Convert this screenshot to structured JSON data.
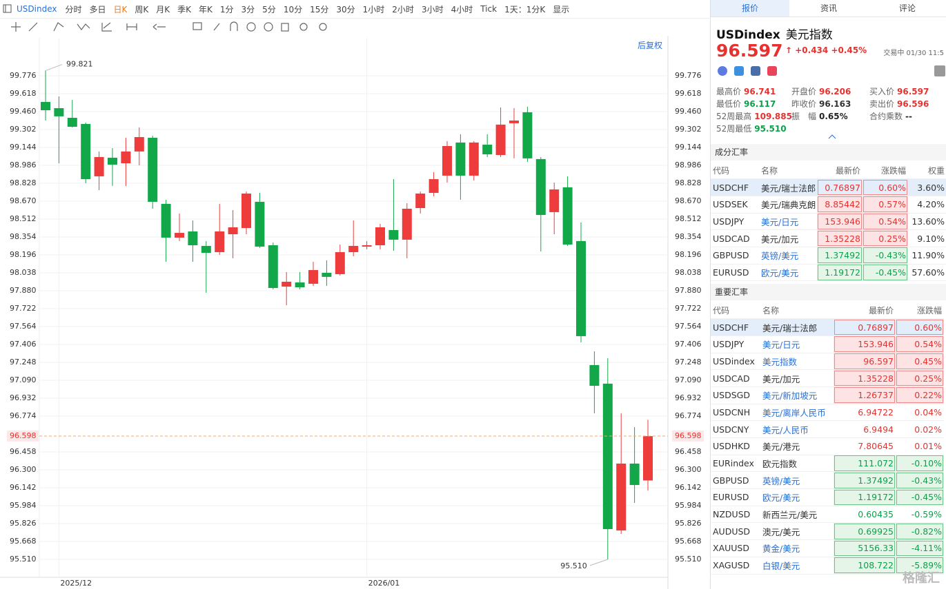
{
  "toolbar": {
    "symbol": "USDindex",
    "periods": [
      "分时",
      "多日",
      "日K",
      "周K",
      "月K",
      "季K",
      "年K",
      "1分",
      "3分",
      "5分",
      "10分",
      "15分",
      "30分",
      "1小时",
      "2小时",
      "3小时",
      "4小时",
      "Tick",
      "1天：1分K",
      "显示"
    ],
    "active_period": 2,
    "adjust": "后复权"
  },
  "chart_data": {
    "type": "candlestick",
    "categories": [
      null,
      "2025/12",
      null,
      null,
      null,
      null,
      null,
      null,
      null,
      null,
      null,
      null,
      null,
      null,
      null,
      null,
      null,
      null,
      null,
      null,
      null,
      null,
      null,
      null,
      "2026/01",
      null,
      null,
      null,
      null,
      null,
      null,
      null,
      null,
      null,
      null,
      null,
      null,
      null,
      null,
      null,
      null,
      null,
      null,
      null,
      null,
      null
    ],
    "open": [
      99.545,
      99.49,
      99.405,
      99.351,
      98.889,
      99.053,
      99.004,
      99.108,
      99.229,
      98.646,
      98.348,
      98.403,
      98.275,
      98.22,
      98.378,
      98.433,
      98.664,
      98.281,
      97.916,
      97.953,
      97.941,
      98.038,
      98.026,
      98.22,
      98.269,
      98.281,
      98.415,
      98.33,
      98.609,
      98.743,
      98.895,
      99.187,
      98.895,
      99.168,
      99.077,
      99.357,
      99.454,
      99.041,
      98.573,
      98.792,
      98.318,
      97.224,
      97.06,
      95.765,
      96.355,
      96.206
    ],
    "close": [
      99.472,
      99.418,
      99.326,
      98.864,
      99.059,
      98.992,
      99.108,
      99.235,
      98.664,
      98.348,
      98.39,
      98.281,
      98.214,
      98.403,
      98.439,
      98.737,
      98.269,
      97.904,
      97.959,
      97.91,
      98.062,
      98.002,
      98.22,
      98.275,
      98.281,
      98.439,
      98.33,
      98.603,
      98.737,
      98.864,
      99.156,
      98.895,
      99.187,
      99.083,
      99.345,
      99.381,
      99.047,
      98.548,
      98.773,
      98.287,
      97.479,
      97.041,
      95.777,
      96.355,
      96.166,
      96.597
    ],
    "high": [
      99.821,
      99.594,
      99.563,
      99.363,
      99.108,
      99.138,
      99.229,
      99.32,
      99.247,
      98.682,
      98.561,
      98.5,
      98.318,
      98.646,
      98.591,
      98.755,
      98.743,
      98.305,
      98.044,
      98.044,
      98.135,
      98.147,
      98.287,
      98.5,
      98.318,
      98.469,
      98.864,
      98.652,
      98.755,
      98.925,
      99.199,
      99.26,
      99.199,
      99.26,
      99.497,
      99.49,
      99.503,
      99.059,
      98.834,
      98.889,
      98.482,
      97.345,
      97.284,
      96.798,
      96.677,
      96.741
    ],
    "low": [
      99.381,
      99.004,
      99.32,
      98.828,
      98.767,
      98.804,
      98.804,
      98.986,
      98.603,
      98.135,
      98.318,
      98.135,
      97.862,
      98.196,
      98.166,
      98.378,
      98.257,
      97.892,
      97.752,
      97.892,
      97.922,
      97.922,
      98.014,
      98.184,
      98.245,
      98.245,
      98.232,
      98.166,
      98.561,
      98.713,
      98.834,
      98.682,
      98.852,
      99.059,
      99.059,
      99.047,
      99.016,
      98.226,
      98.378,
      98.275,
      97.424,
      96.798,
      95.51,
      95.735,
      96.008,
      96.117
    ],
    "up_color": "#ee3b3b",
    "down_color": "#12a84a",
    "ylim": [
      95.352,
      100.11
    ],
    "yticks": [
      99.776,
      99.618,
      {
        "value": 99.46,
        "label": "99.460"
      },
      99.302,
      99.144,
      98.986,
      98.828,
      {
        "value": 98.67,
        "label": "98.670"
      },
      98.512,
      98.354,
      98.196,
      98.038,
      {
        "value": 97.88,
        "label": "97.880"
      },
      97.722,
      97.564,
      97.406,
      97.248,
      {
        "value": 97.09,
        "label": "97.090"
      },
      96.932,
      96.774,
      96.458,
      {
        "value": 96.3,
        "label": "96.300"
      },
      96.142,
      95.984,
      95.826,
      95.668,
      {
        "value": 95.51,
        "label": "95.510"
      }
    ],
    "grid": true,
    "current_price": 96.598,
    "max_label": 99.821,
    "min_label": {
      "value": 95.51,
      "label": "95.510"
    }
  },
  "panel": {
    "tabs": [
      "报价",
      "资讯",
      "评论"
    ],
    "code": "USDindex",
    "name": "美元指数",
    "price": "96.597",
    "change": "+0.434",
    "change_pct": "+0.45%",
    "status": "交易中 01/30 11:5",
    "stats": [
      {
        "label": "最高价",
        "value": "96.741",
        "color": "#e8312f"
      },
      {
        "label": "开盘价",
        "value": "96.206",
        "color": "#e8312f"
      },
      {
        "label": "买入价",
        "value": "96.597",
        "color": "#e8312f"
      },
      {
        "label": "最低价",
        "value": "96.117",
        "color": "#0aa14a"
      },
      {
        "label": "昨收价",
        "value": "96.163",
        "color": "#333333"
      },
      {
        "label": "卖出价",
        "value": "96.596",
        "color": "#e8312f"
      },
      {
        "label": "52周最高",
        "value": "109.885",
        "color": "#e8312f"
      },
      {
        "label": "振　幅",
        "value": "0.65%",
        "color": "#222222"
      },
      {
        "label": "合约乘数",
        "value": "--",
        "color": "#222222"
      },
      {
        "label": "52周最低",
        "value": "95.510",
        "color": "#0aa14a"
      }
    ],
    "components": {
      "title": "成分汇率",
      "headers": [
        "代码",
        "名称",
        "最新价",
        "涨跌幅",
        "权重"
      ],
      "rows": [
        {
          "code": "USDCHF",
          "name": "美元/瑞士法郎",
          "price": "0.76897",
          "change": "0.60%",
          "weight": "3.60%",
          "link": false,
          "boxed": true
        },
        {
          "code": "USDSEK",
          "name": "美元/瑞典克朗",
          "price": "8.85442",
          "change": "0.57%",
          "weight": "4.20%",
          "link": false,
          "boxed": true
        },
        {
          "code": "USDJPY",
          "name": "美元/日元",
          "price": "153.946",
          "change": "0.54%",
          "weight": "13.60%",
          "link": true,
          "boxed": true
        },
        {
          "code": "USDCAD",
          "name": "美元/加元",
          "price": "1.35228",
          "change": "0.25%",
          "weight": "9.10%",
          "link": false,
          "boxed": true
        },
        {
          "code": "GBPUSD",
          "name": "英镑/美元",
          "price": "1.37492",
          "change": "-0.43%",
          "weight": "11.90%",
          "link": true,
          "boxed": true
        },
        {
          "code": "EURUSD",
          "name": "欧元/美元",
          "price": "1.19172",
          "change": "-0.45%",
          "weight": "57.60%",
          "link": true,
          "boxed": true
        }
      ]
    },
    "major": {
      "title": "重要汇率",
      "headers": [
        "代码",
        "名称",
        "最新价",
        "涨跌幅"
      ],
      "rows": [
        {
          "code": "USDCHF",
          "name": "美元/瑞士法郎",
          "price": "0.76897",
          "change": "0.60%",
          "link": false,
          "boxed": true
        },
        {
          "code": "USDJPY",
          "name": "美元/日元",
          "price": "153.946",
          "change": "0.54%",
          "link": true,
          "boxed": true
        },
        {
          "code": "USDindex",
          "name": "美元指数",
          "price": "96.597",
          "change": "0.45%",
          "link": true,
          "boxed": true
        },
        {
          "code": "USDCAD",
          "name": "美元/加元",
          "price": "1.35228",
          "change": "0.25%",
          "link": false,
          "boxed": true
        },
        {
          "code": "USDSGD",
          "name": "美元/新加坡元",
          "price": "1.26737",
          "change": "0.22%",
          "link": true,
          "boxed": true
        },
        {
          "code": "USDCNH",
          "name": "美元/离岸人民币",
          "price": "6.94722",
          "change": "0.04%",
          "link": true,
          "boxed": false
        },
        {
          "code": "USDCNY",
          "name": "美元/人民币",
          "price": "6.9494",
          "change": "0.02%",
          "link": true,
          "boxed": false
        },
        {
          "code": "USDHKD",
          "name": "美元/港元",
          "price": "7.80645",
          "change": "0.01%",
          "link": false,
          "boxed": false
        },
        {
          "code": "EURindex",
          "name": "欧元指数",
          "price": "111.072",
          "change": "-0.10%",
          "link": false,
          "boxed": true
        },
        {
          "code": "GBPUSD",
          "name": "英镑/美元",
          "price": "1.37492",
          "change": "-0.43%",
          "link": true,
          "boxed": true
        },
        {
          "code": "EURUSD",
          "name": "欧元/美元",
          "price": "1.19172",
          "change": "-0.45%",
          "link": true,
          "boxed": true
        },
        {
          "code": "NZDUSD",
          "name": "新西兰元/美元",
          "price": "0.60435",
          "change": "-0.59%",
          "link": false,
          "boxed": false
        },
        {
          "code": "AUDUSD",
          "name": "澳元/美元",
          "price": "0.69925",
          "change": "-0.82%",
          "link": false,
          "boxed": true
        },
        {
          "code": "XAUUSD",
          "name": "黄金/美元",
          "price": "5156.33",
          "change": "-4.11%",
          "link": true,
          "boxed": true
        },
        {
          "code": "XAGUSD",
          "name": "白银/美元",
          "price": "108.722",
          "change": "-5.89%",
          "link": true,
          "boxed": true
        }
      ]
    },
    "watermark": "格隆汇"
  }
}
